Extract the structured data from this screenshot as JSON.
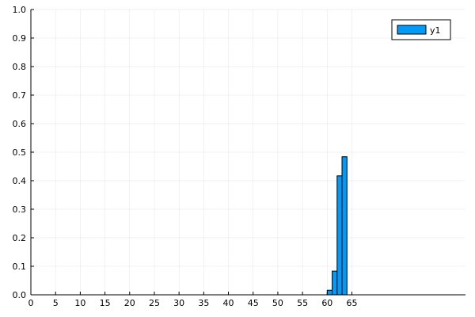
{
  "chart_data": {
    "type": "bar",
    "title": "",
    "xlabel": "",
    "ylabel": "",
    "x": [
      60,
      61,
      62,
      63
    ],
    "series": [
      {
        "name": "y1",
        "values": [
          0.016,
          0.083,
          0.417,
          0.484
        ],
        "color": "#009af9"
      }
    ],
    "bar_width": 1,
    "xlim": [
      0,
      88
    ],
    "ylim": [
      0,
      1
    ],
    "x_ticks": [
      "0",
      "5",
      "10",
      "15",
      "20",
      "25",
      "30",
      "35",
      "40",
      "45",
      "50",
      "55",
      "60",
      "65"
    ],
    "y_ticks": [
      "0.0",
      "0.1",
      "0.2",
      "0.3",
      "0.4",
      "0.5",
      "0.6",
      "0.7",
      "0.8",
      "0.9",
      "1.0"
    ],
    "grid": true,
    "legend_position": "top-right"
  }
}
